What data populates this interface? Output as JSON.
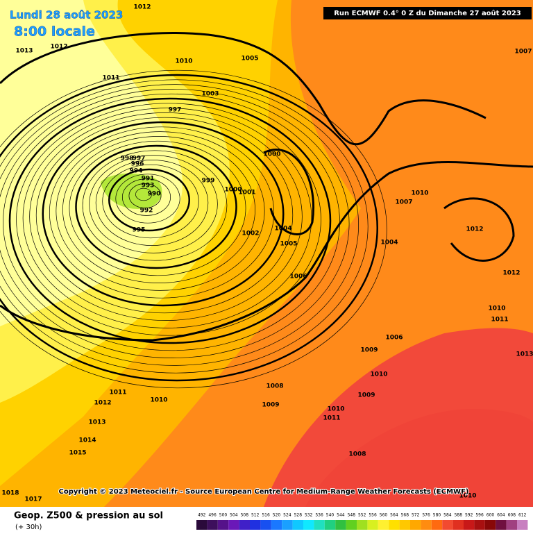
{
  "header": {
    "date": "Lundi 28 août 2023",
    "time": "8:00 locale",
    "run": "Run ECMWF 0.4° 0 Z du Dimanche 27 août 2023"
  },
  "copyright": "Copyright © 2023 Meteociel.fr - Source European Centre for Medium-Range Weather Forecasts (ECMWF)",
  "footer": {
    "title": "Geop. Z500 & pression au sol",
    "lead": "(+ 30h)"
  },
  "isobar_labels": [
    "1012",
    "1013",
    "1012",
    "1011",
    "1010",
    "1005",
    "1003",
    "997",
    "998",
    "997",
    "996",
    "994",
    "991",
    "993",
    "990",
    "992",
    "999",
    "995",
    "1000",
    "1001",
    "1000",
    "1002",
    "1004",
    "1005",
    "1006",
    "1004",
    "1010",
    "1007",
    "1012",
    "1012",
    "1010",
    "1011",
    "1006",
    "1009",
    "1010",
    "1009",
    "1008",
    "1009",
    "1010",
    "1011",
    "1008",
    "1011",
    "1010",
    "1012",
    "1013",
    "1014",
    "1015",
    "1018",
    "1017",
    "1010",
    "1007",
    "1013"
  ],
  "scale": {
    "ticks": [
      492,
      496,
      500,
      504,
      508,
      512,
      516,
      520,
      524,
      528,
      532,
      536,
      540,
      544,
      548,
      552,
      556,
      560,
      564,
      568,
      572,
      576,
      580,
      584,
      588,
      592,
      596,
      600,
      604,
      608,
      612
    ],
    "colors": [
      "#2a0a3a",
      "#3d0f5c",
      "#55128a",
      "#6a18b8",
      "#4020c8",
      "#2030e0",
      "#1850f0",
      "#1a78ff",
      "#1aa0ff",
      "#10c8ff",
      "#10e8ff",
      "#20e0c0",
      "#20d080",
      "#30c040",
      "#60d020",
      "#a0e020",
      "#d8f020",
      "#fff030",
      "#ffe000",
      "#ffc800",
      "#ffa800",
      "#ff8c10",
      "#ff6a10",
      "#f24a30",
      "#e03020",
      "#c81818",
      "#a81010",
      "#880808",
      "#701040",
      "#a04080",
      "#c880c0"
    ]
  }
}
